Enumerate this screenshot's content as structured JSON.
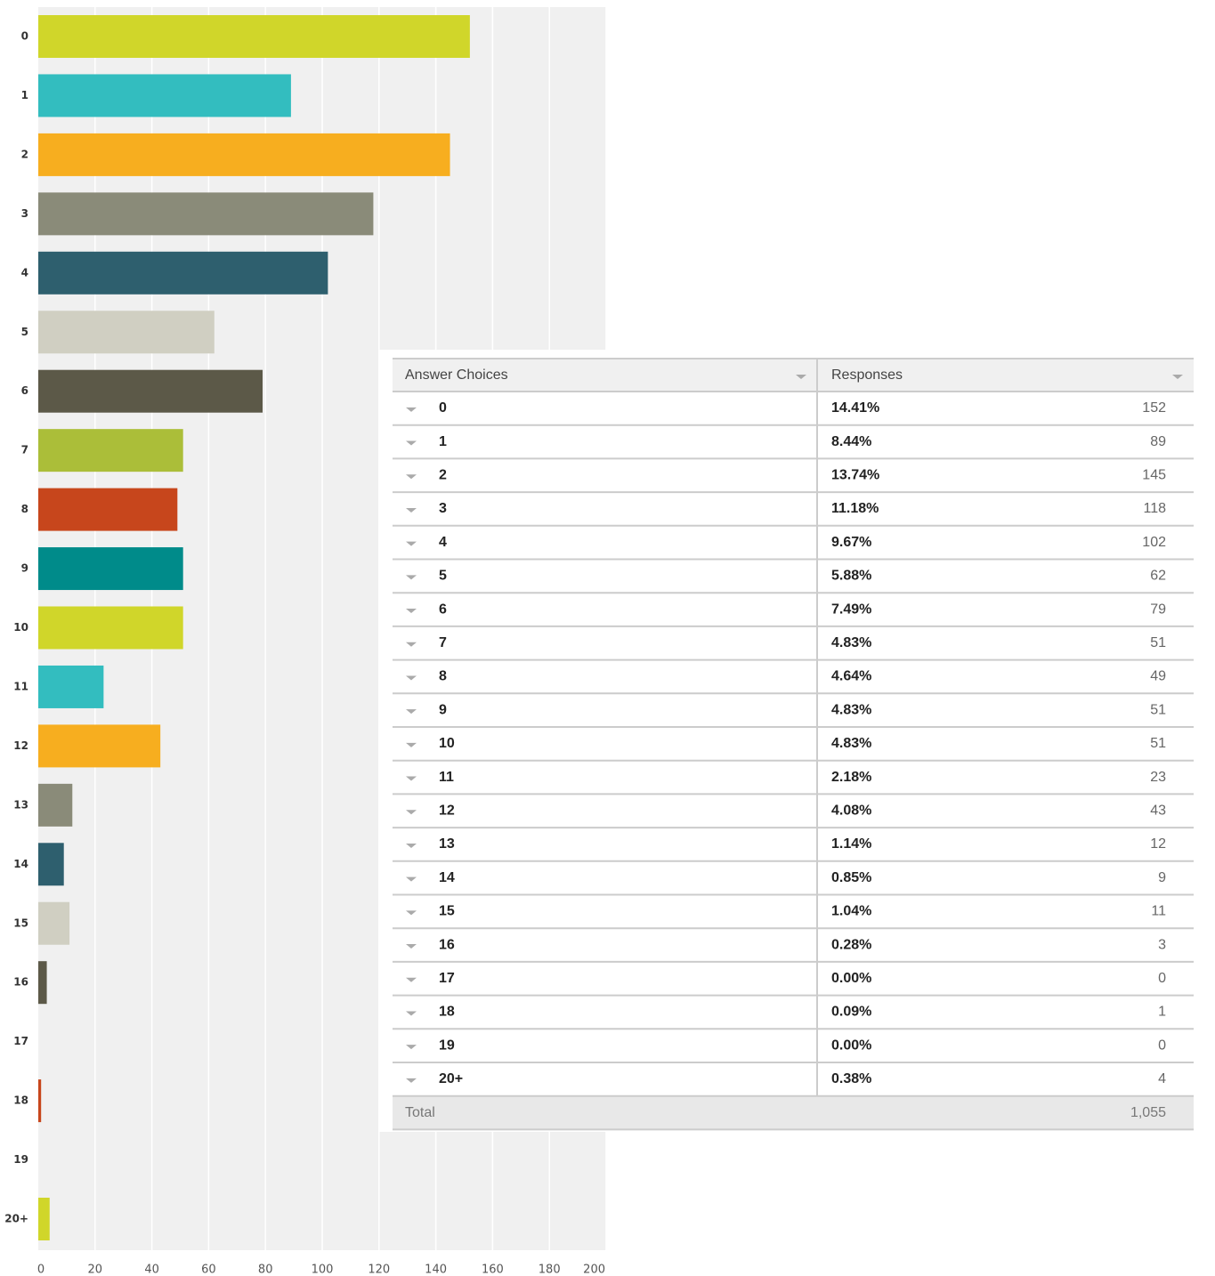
{
  "chart_data": {
    "type": "bar",
    "orientation": "horizontal",
    "categories": [
      "0",
      "1",
      "2",
      "3",
      "4",
      "5",
      "6",
      "7",
      "8",
      "9",
      "10",
      "11",
      "12",
      "13",
      "14",
      "15",
      "16",
      "17",
      "18",
      "19",
      "20+"
    ],
    "values": [
      152,
      89,
      145,
      118,
      102,
      62,
      79,
      51,
      49,
      51,
      51,
      23,
      43,
      12,
      9,
      11,
      3,
      0,
      1,
      0,
      4
    ],
    "colors": [
      "#d0d62a",
      "#33bdbf",
      "#f7ae1f",
      "#8a8b79",
      "#2e5f6e",
      "#d0cfc2",
      "#5c5948",
      "#abbe39",
      "#c7461c",
      "#008b8a",
      "#d0d62a",
      "#33bdbf",
      "#f7ae1f",
      "#8a8b79",
      "#2e5f6e",
      "#d0cfc2",
      "#5c5948",
      "#abbe39",
      "#c7461c",
      "#008b8a",
      "#d0d62a"
    ],
    "xlim": [
      0,
      200
    ],
    "xticks": [
      0,
      20,
      40,
      60,
      80,
      100,
      120,
      140,
      160,
      180,
      200
    ],
    "grid": true
  },
  "table": {
    "headers": [
      "Answer Choices",
      "Responses"
    ],
    "percents": [
      "14.41%",
      "8.44%",
      "13.74%",
      "11.18%",
      "9.67%",
      "5.88%",
      "7.49%",
      "4.83%",
      "4.64%",
      "4.83%",
      "4.83%",
      "2.18%",
      "4.08%",
      "1.14%",
      "0.85%",
      "1.04%",
      "0.28%",
      "0.00%",
      "0.09%",
      "0.00%",
      "0.38%"
    ],
    "total_label": "Total",
    "total": "1,055"
  }
}
